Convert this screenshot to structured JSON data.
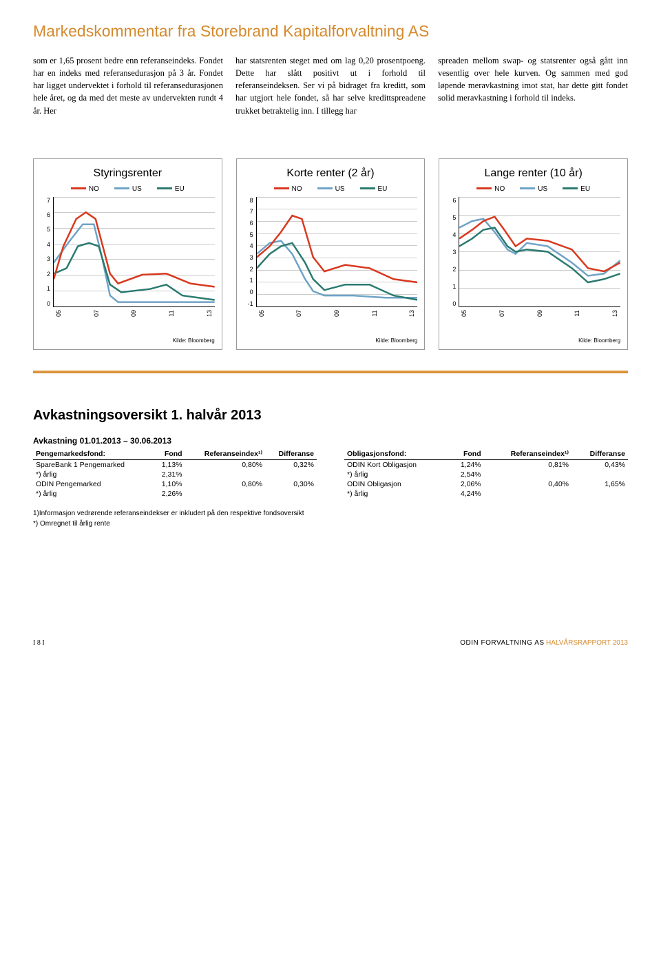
{
  "header": {
    "title": "Markedskommentar fra Storebrand Kapitalforvaltning AS"
  },
  "body": {
    "col1": "som er 1,65 prosent bedre enn referanseindeks. Fondet har en indeks med referansedurasjon på 3 år. Fondet har ligget undervektet i forhold til referansedurasjonen hele året, og da med det meste av undervekten rundt 4 år. Her",
    "col2": "har statsrenten steget med om lag 0,20 prosentpoeng. Dette har slått positivt ut i forhold til referanseindeksen. Ser vi på bidraget fra kreditt, som har utgjort hele fondet, så har selve kredittspreadene trukket betraktelig inn. I tillegg har",
    "col3": "spreaden mellom swap- og statsrenter også gått inn vesentlig over hele kurven. Og sammen med god løpende meravkastning imot stat, har dette gitt fondet solid meravkastning i forhold til indeks."
  },
  "charts": {
    "legend_labels": [
      "NO",
      "US",
      "EU"
    ],
    "series_colors": {
      "NO": "#d9391f",
      "US": "#6fa3c7",
      "EU": "#2a7a6f"
    },
    "x_ticks": [
      "05",
      "07",
      "09",
      "11",
      "13"
    ],
    "chart1": {
      "title": "Styringsrenter",
      "ylim": [
        0,
        7
      ],
      "yticks": [
        0,
        1,
        2,
        3,
        4,
        5,
        6,
        7
      ],
      "series": {
        "NO": [
          [
            0,
            25
          ],
          [
            6,
            55
          ],
          [
            14,
            80
          ],
          [
            20,
            86
          ],
          [
            26,
            80
          ],
          [
            35,
            30
          ],
          [
            40,
            21
          ],
          [
            55,
            29
          ],
          [
            70,
            30
          ],
          [
            85,
            21
          ],
          [
            100,
            18
          ]
        ],
        "US": [
          [
            0,
            40
          ],
          [
            10,
            60
          ],
          [
            18,
            75
          ],
          [
            25,
            75
          ],
          [
            30,
            45
          ],
          [
            35,
            10
          ],
          [
            40,
            4
          ],
          [
            100,
            4
          ]
        ],
        "EU": [
          [
            0,
            30
          ],
          [
            8,
            35
          ],
          [
            15,
            55
          ],
          [
            22,
            58
          ],
          [
            28,
            55
          ],
          [
            35,
            20
          ],
          [
            42,
            13
          ],
          [
            60,
            16
          ],
          [
            70,
            20
          ],
          [
            80,
            10
          ],
          [
            100,
            6
          ]
        ]
      }
    },
    "chart2": {
      "title": "Korte renter (2 år)",
      "ylim": [
        -1,
        8
      ],
      "yticks": [
        -1,
        0,
        1,
        2,
        3,
        4,
        5,
        6,
        7,
        8
      ],
      "series": {
        "NO": [
          [
            0,
            45
          ],
          [
            8,
            55
          ],
          [
            15,
            68
          ],
          [
            22,
            83
          ],
          [
            28,
            80
          ],
          [
            35,
            45
          ],
          [
            42,
            32
          ],
          [
            55,
            38
          ],
          [
            70,
            35
          ],
          [
            85,
            25
          ],
          [
            100,
            22
          ]
        ],
        "US": [
          [
            0,
            48
          ],
          [
            8,
            58
          ],
          [
            15,
            60
          ],
          [
            22,
            48
          ],
          [
            30,
            25
          ],
          [
            35,
            14
          ],
          [
            42,
            10
          ],
          [
            60,
            10
          ],
          [
            80,
            8
          ],
          [
            100,
            8
          ]
        ],
        "EU": [
          [
            0,
            35
          ],
          [
            8,
            48
          ],
          [
            15,
            55
          ],
          [
            22,
            58
          ],
          [
            30,
            40
          ],
          [
            35,
            25
          ],
          [
            42,
            15
          ],
          [
            55,
            20
          ],
          [
            70,
            20
          ],
          [
            85,
            10
          ],
          [
            100,
            6
          ]
        ]
      }
    },
    "chart3": {
      "title": "Lange renter (10 år)",
      "ylim": [
        0,
        6
      ],
      "yticks": [
        0,
        1,
        2,
        3,
        4,
        5,
        6
      ],
      "series": {
        "NO": [
          [
            0,
            62
          ],
          [
            8,
            70
          ],
          [
            15,
            78
          ],
          [
            22,
            82
          ],
          [
            28,
            70
          ],
          [
            35,
            55
          ],
          [
            42,
            62
          ],
          [
            55,
            60
          ],
          [
            70,
            52
          ],
          [
            80,
            35
          ],
          [
            90,
            32
          ],
          [
            100,
            40
          ]
        ],
        "US": [
          [
            0,
            72
          ],
          [
            8,
            78
          ],
          [
            15,
            80
          ],
          [
            22,
            68
          ],
          [
            30,
            52
          ],
          [
            35,
            48
          ],
          [
            42,
            58
          ],
          [
            55,
            55
          ],
          [
            70,
            40
          ],
          [
            80,
            28
          ],
          [
            90,
            30
          ],
          [
            100,
            42
          ]
        ],
        "EU": [
          [
            0,
            55
          ],
          [
            8,
            62
          ],
          [
            15,
            70
          ],
          [
            22,
            72
          ],
          [
            30,
            55
          ],
          [
            35,
            50
          ],
          [
            42,
            52
          ],
          [
            55,
            50
          ],
          [
            70,
            35
          ],
          [
            80,
            22
          ],
          [
            90,
            25
          ],
          [
            100,
            30
          ]
        ]
      }
    },
    "source": "Kilde: Bloomberg"
  },
  "returns": {
    "title": "Avkastningsoversikt 1. halvår 2013",
    "subtitle": "Avkastning 01.01.2013 – 30.06.2013",
    "left": {
      "columns": [
        "Pengemarkedsfond:",
        "Fond",
        "Referanseindex¹⁾",
        "Differanse"
      ],
      "rows": [
        [
          "SpareBank 1 Pengemarked",
          "1,13%",
          "0,80%",
          "0,32%"
        ],
        [
          "*) årlig",
          "2,31%",
          "",
          ""
        ],
        [
          "ODIN Pengemarked",
          "1,10%",
          "0,80%",
          "0,30%"
        ],
        [
          "*) årlig",
          "2,26%",
          "",
          ""
        ]
      ]
    },
    "right": {
      "columns": [
        "Obligasjonsfond:",
        "Fond",
        "Referanseindex¹⁾",
        "Differanse"
      ],
      "rows": [
        [
          "ODIN Kort Obligasjon",
          "1,24%",
          "0,81%",
          "0,43%"
        ],
        [
          "*) årlig",
          "2,54%",
          "",
          ""
        ],
        [
          "ODIN Obligasjon",
          "2,06%",
          "0,40%",
          "1,65%"
        ],
        [
          "*) årlig",
          "4,24%",
          "",
          ""
        ]
      ]
    },
    "footnote1": "1)Informasjon vedrørende referanseindekser er inkludert på den respektive fondsoversikt",
    "footnote2": "*)  Omregnet til årlig rente"
  },
  "footer": {
    "page": "I 8 I",
    "company": "ODIN FORVALTNING AS",
    "report": "HALVÅRSRAPPORT 2013"
  }
}
